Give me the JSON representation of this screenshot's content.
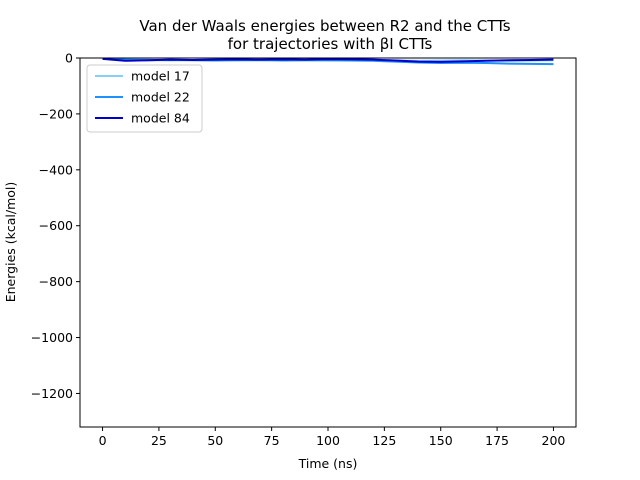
{
  "chart_data": {
    "type": "line",
    "title_line1": "Van der Waals energies between R2 and the CTTs",
    "title_line2": "for trajectories with βI CTTs",
    "xlabel": "Time (ns)",
    "ylabel": "Energies (kcal/mol)",
    "xlim": [
      -10,
      210
    ],
    "ylim": [
      -1320,
      0
    ],
    "xticks": [
      0,
      25,
      50,
      75,
      100,
      125,
      150,
      175,
      200
    ],
    "yticks": [
      0,
      -200,
      -400,
      -600,
      -800,
      -1000,
      -1200
    ],
    "ytick_labels": [
      "0",
      "−200",
      "−400",
      "−600",
      "−800",
      "−1000",
      "−1200"
    ],
    "grid": false,
    "legend_position": "upper-left",
    "series": [
      {
        "name": "model 17",
        "color": "#87cefa",
        "x": [
          0,
          10,
          20,
          30,
          40,
          50,
          60,
          70,
          80,
          90,
          100,
          110,
          120,
          130,
          140,
          150,
          160,
          170,
          180,
          190,
          200
        ],
        "values": [
          -3,
          -5,
          -6,
          -8,
          -7,
          -6,
          -8,
          -9,
          -7,
          -8,
          -9,
          -8,
          -7,
          -9,
          -10,
          -9,
          -8,
          -9,
          -10,
          -9,
          -8
        ]
      },
      {
        "name": "model 22",
        "color": "#1e90ff",
        "x": [
          0,
          10,
          20,
          30,
          40,
          50,
          60,
          70,
          80,
          90,
          100,
          110,
          120,
          130,
          140,
          150,
          160,
          170,
          180,
          190,
          200
        ],
        "values": [
          -2,
          -6,
          -8,
          -7,
          -8,
          -9,
          -8,
          -7,
          -9,
          -8,
          -8,
          -9,
          -10,
          -13,
          -16,
          -18,
          -17,
          -18,
          -20,
          -21,
          -22
        ]
      },
      {
        "name": "model 84",
        "color": "#0000cd",
        "x": [
          0,
          10,
          20,
          30,
          40,
          50,
          60,
          70,
          80,
          90,
          100,
          110,
          120,
          130,
          140,
          150,
          160,
          170,
          180,
          190,
          200
        ],
        "values": [
          -3,
          -10,
          -8,
          -6,
          -7,
          -6,
          -5,
          -6,
          -5,
          -6,
          -4,
          -5,
          -6,
          -9,
          -13,
          -14,
          -12,
          -10,
          -8,
          -7,
          -6
        ]
      }
    ]
  }
}
